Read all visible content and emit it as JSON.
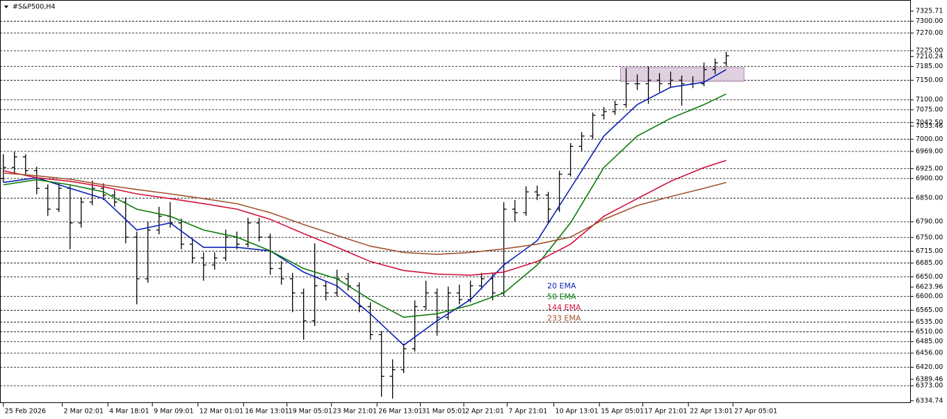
{
  "chart_data": {
    "type": "candlestick",
    "title": "#S&P500,H4",
    "xlim": [
      -0.3,
      81.6
    ],
    "ylim": [
      6329,
      7354
    ],
    "xticks": [
      {
        "value": 0,
        "label": "25 Feb 2026"
      },
      {
        "value": 5.3,
        "label": "2 Mar 02:01"
      },
      {
        "value": 9.4,
        "label": "4 Mar 18:01"
      },
      {
        "value": 13.4,
        "label": "9 Mar 09:01"
      },
      {
        "value": 17.5,
        "label": "12 Mar 01:01"
      },
      {
        "value": 21.6,
        "label": "16 Mar 13:01"
      },
      {
        "value": 25.5,
        "label": "19 Mar 05:01"
      },
      {
        "value": 29.5,
        "label": "23 Mar 21:01"
      },
      {
        "value": 33.6,
        "label": "26 Mar 13:01"
      },
      {
        "value": 37.5,
        "label": "31 Mar 05:01"
      },
      {
        "value": 41.4,
        "label": "2 Apr 21:01"
      },
      {
        "value": 45.3,
        "label": "7 Apr 21:01"
      },
      {
        "value": 49.5,
        "label": "10 Apr 13:01"
      },
      {
        "value": 53.6,
        "label": "15 Apr 05:01"
      },
      {
        "value": 57.5,
        "label": "17 Apr 21:01"
      },
      {
        "value": 61.6,
        "label": "22 Apr 13:01"
      },
      {
        "value": 65.6,
        "label": "27 Apr 05:01"
      }
    ],
    "yticks": [
      7325.71,
      7033.46,
      6623.96,
      6389.46,
      6334.74
    ],
    "last_price": 7210.24,
    "levels": [
      {
        "value": 7300,
        "label": "7300.00"
      },
      {
        "value": 7270,
        "label": "7270.00"
      },
      {
        "value": 7225,
        "label": "7225.00"
      },
      {
        "value": 7185,
        "label": "7185.00"
      },
      {
        "value": 7150,
        "label": "7150.00"
      },
      {
        "value": 7100,
        "label": "7100.00"
      },
      {
        "value": 7075,
        "label": "7075.00"
      },
      {
        "value": 7042.5,
        "label": "7042.50"
      },
      {
        "value": 7000,
        "label": "7000.00"
      },
      {
        "value": 6969,
        "label": "6969.00"
      },
      {
        "value": 6925,
        "label": "6925.00"
      },
      {
        "value": 6900,
        "label": "6900.00"
      },
      {
        "value": 6850,
        "label": "6850.00"
      },
      {
        "value": 6790,
        "label": "6790.00"
      },
      {
        "value": 6750,
        "label": "6750.00"
      },
      {
        "value": 6715,
        "label": "6715.00"
      },
      {
        "value": 6685,
        "label": "6685.00"
      },
      {
        "value": 6650,
        "label": "6650.00"
      },
      {
        "value": 6600,
        "label": "6600.00"
      },
      {
        "value": 6565,
        "label": "6565.00"
      },
      {
        "value": 6535,
        "label": "6535.00"
      },
      {
        "value": 6510,
        "label": "6510.00"
      },
      {
        "value": 6485,
        "label": "6485.00"
      },
      {
        "value": 6456,
        "label": "6456.00"
      },
      {
        "value": 6420,
        "label": "6420.00"
      },
      {
        "value": 6373,
        "label": "6373.00"
      }
    ],
    "zone": {
      "x": [
        55.5,
        66.6
      ],
      "y": [
        7147,
        7182
      ],
      "color": "#d8c4d8"
    },
    "ohlc": [
      [
        6900,
        6962,
        6890,
        6928
      ],
      [
        6928,
        6968,
        6915,
        6955
      ],
      [
        6955,
        6962,
        6908,
        6920
      ],
      [
        6920,
        6930,
        6860,
        6875
      ],
      [
        6875,
        6885,
        6805,
        6822
      ],
      [
        6822,
        6890,
        6815,
        6875
      ],
      [
        6875,
        6882,
        6720,
        6787
      ],
      [
        6787,
        6852,
        6775,
        6840
      ],
      [
        6840,
        6895,
        6832,
        6875
      ],
      [
        6875,
        6888,
        6845,
        6858
      ],
      [
        6858,
        6870,
        6828,
        6840
      ],
      [
        6840,
        6852,
        6735,
        6751
      ],
      [
        6751,
        6765,
        6580,
        6645
      ],
      [
        6645,
        6790,
        6635,
        6769
      ],
      [
        6769,
        6828,
        6758,
        6804
      ],
      [
        6804,
        6840,
        6775,
        6787
      ],
      [
        6787,
        6798,
        6720,
        6733
      ],
      [
        6733,
        6748,
        6685,
        6698
      ],
      [
        6698,
        6712,
        6640,
        6680
      ],
      [
        6680,
        6712,
        6668,
        6698
      ],
      [
        6698,
        6770,
        6690,
        6751
      ],
      [
        6751,
        6765,
        6720,
        6733
      ],
      [
        6733,
        6800,
        6725,
        6787
      ],
      [
        6787,
        6800,
        6740,
        6751
      ],
      [
        6751,
        6760,
        6655,
        6671
      ],
      [
        6671,
        6690,
        6630,
        6645
      ],
      [
        6645,
        6660,
        6560,
        6609
      ],
      [
        6609,
        6620,
        6490,
        6538
      ],
      [
        6538,
        6735,
        6525,
        6627
      ],
      [
        6627,
        6640,
        6590,
        6609
      ],
      [
        6609,
        6668,
        6600,
        6645
      ],
      [
        6645,
        6660,
        6615,
        6627
      ],
      [
        6627,
        6636,
        6560,
        6574
      ],
      [
        6574,
        6585,
        6490,
        6503
      ],
      [
        6503,
        6512,
        6345,
        6397
      ],
      [
        6397,
        6440,
        6340,
        6414
      ],
      [
        6414,
        6480,
        6405,
        6467
      ],
      [
        6467,
        6590,
        6460,
        6574
      ],
      [
        6574,
        6640,
        6565,
        6609
      ],
      [
        6609,
        6620,
        6500,
        6547
      ],
      [
        6547,
        6625,
        6540,
        6609
      ],
      [
        6609,
        6630,
        6580,
        6592
      ],
      [
        6592,
        6640,
        6585,
        6627
      ],
      [
        6627,
        6660,
        6618,
        6645
      ],
      [
        6645,
        6660,
        6590,
        6609
      ],
      [
        6609,
        6840,
        6600,
        6822
      ],
      [
        6822,
        6845,
        6790,
        6813
      ],
      [
        6813,
        6880,
        6805,
        6866
      ],
      [
        6866,
        6882,
        6845,
        6858
      ],
      [
        6858,
        6866,
        6785,
        6822
      ],
      [
        6822,
        6920,
        6815,
        6911
      ],
      [
        6911,
        6990,
        6905,
        6982
      ],
      [
        6982,
        7018,
        6970,
        7008
      ],
      [
        7008,
        7068,
        7000,
        7061
      ],
      [
        7061,
        7082,
        7050,
        7070
      ],
      [
        7070,
        7098,
        7062,
        7088
      ],
      [
        7088,
        7180,
        7080,
        7141
      ],
      [
        7141,
        7165,
        7125,
        7141
      ],
      [
        7141,
        7185,
        7090,
        7150
      ],
      [
        7150,
        7168,
        7120,
        7141
      ],
      [
        7141,
        7172,
        7130,
        7150
      ],
      [
        7150,
        7162,
        7085,
        7141
      ],
      [
        7141,
        7160,
        7130,
        7141
      ],
      [
        7141,
        7195,
        7135,
        7177
      ],
      [
        7177,
        7205,
        7165,
        7194
      ],
      [
        7194,
        7222,
        7185,
        7212
      ]
    ],
    "series": [
      {
        "name": "20 EMA",
        "color": "#0a1fb4",
        "x": [
          0,
          3,
          6,
          9,
          12,
          15,
          18,
          21,
          24,
          27,
          30,
          33,
          36,
          39,
          42,
          45,
          48,
          51,
          54,
          57,
          60,
          63,
          65
        ],
        "values": [
          6890,
          6902,
          6875,
          6849,
          6769,
          6787,
          6725,
          6725,
          6716,
          6662,
          6627,
          6556,
          6476,
          6538,
          6592,
          6680,
          6742,
          6875,
          7008,
          7088,
          7132,
          7145,
          7177
        ]
      },
      {
        "name": "50 EMA",
        "color": "#0a7a0a",
        "x": [
          0,
          3,
          6,
          9,
          12,
          15,
          18,
          21,
          24,
          27,
          30,
          33,
          36,
          39,
          42,
          45,
          48,
          51,
          54,
          57,
          60,
          63,
          65
        ],
        "values": [
          6884,
          6897,
          6884,
          6866,
          6822,
          6804,
          6769,
          6751,
          6716,
          6671,
          6645,
          6592,
          6547,
          6556,
          6578,
          6609,
          6680,
          6787,
          6928,
          7008,
          7053,
          7088,
          7115
        ]
      },
      {
        "name": "144 EMA",
        "color": "#d0103a",
        "x": [
          0,
          3,
          6,
          9,
          12,
          15,
          18,
          21,
          24,
          27,
          30,
          33,
          36,
          39,
          42,
          45,
          48,
          51,
          54,
          57,
          60,
          63,
          65
        ],
        "values": [
          6920,
          6902,
          6893,
          6879,
          6861,
          6849,
          6836,
          6822,
          6796,
          6760,
          6725,
          6689,
          6666,
          6657,
          6654,
          6662,
          6689,
          6733,
          6804,
          6849,
          6893,
          6928,
          6946
        ]
      },
      {
        "name": "233 EMA",
        "color": "#a0522d",
        "x": [
          0,
          3,
          6,
          9,
          12,
          15,
          18,
          21,
          24,
          27,
          30,
          33,
          36,
          39,
          42,
          45,
          48,
          51,
          54,
          57,
          60,
          63,
          65
        ],
        "values": [
          6914,
          6907,
          6898,
          6884,
          6872,
          6861,
          6849,
          6836,
          6813,
          6783,
          6755,
          6728,
          6712,
          6707,
          6712,
          6721,
          6733,
          6751,
          6796,
          6831,
          6854,
          6875,
          6890
        ]
      }
    ]
  }
}
